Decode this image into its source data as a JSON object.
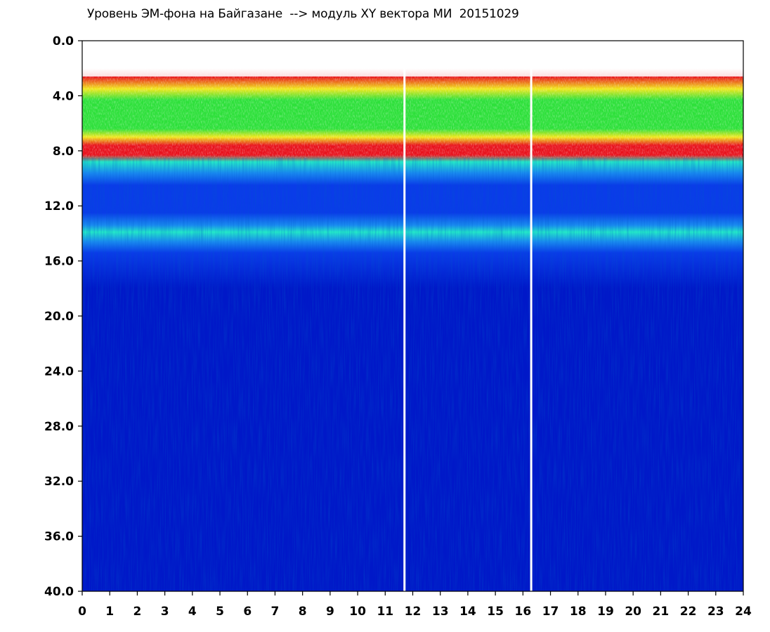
{
  "chart_data": {
    "type": "heatmap",
    "title": "Уровень ЭМ-фона на Байгазане  --> модуль XY вектора МИ  20151029",
    "x_tick_labels": [
      "0",
      "1",
      "2",
      "3",
      "4",
      "5",
      "6",
      "7",
      "8",
      "9",
      "10",
      "11",
      "12",
      "13",
      "14",
      "15",
      "16",
      "17",
      "18",
      "19",
      "20",
      "21",
      "22",
      "23",
      "24"
    ],
    "y_tick_labels": [
      "0.0",
      "4.0",
      "8.0",
      "12.0",
      "16.0",
      "20.0",
      "24.0",
      "28.0",
      "32.0",
      "36.0",
      "40.0"
    ],
    "xlim": [
      0,
      24
    ],
    "ylim": [
      0,
      40
    ],
    "y_inverted": true,
    "grid": false,
    "colormap": [
      "#ffffff",
      "#e8121c",
      "#f0e81c",
      "#2de03a",
      "#23e8c8",
      "#1a8cf0",
      "#0a3ce8",
      "#0018c8"
    ],
    "background_color": "#0018cc",
    "gaps_x": [
      11.7,
      16.3
    ],
    "bands": [
      {
        "y_from": 0.0,
        "y_to": 2.0,
        "level": "white / sparse red"
      },
      {
        "y_from": 2.0,
        "y_to": 4.0,
        "level": "red-yellow"
      },
      {
        "y_from": 4.0,
        "y_to": 7.0,
        "level": "green"
      },
      {
        "y_from": 7.0,
        "y_to": 8.5,
        "level": "red"
      },
      {
        "y_from": 8.5,
        "y_to": 10.0,
        "level": "cyan-light blue"
      },
      {
        "y_from": 10.0,
        "y_to": 13.0,
        "level": "blue"
      },
      {
        "y_from": 13.0,
        "y_to": 15.0,
        "level": "cyan-light blue"
      },
      {
        "y_from": 15.0,
        "y_to": 40.0,
        "level": "dark blue"
      }
    ]
  }
}
